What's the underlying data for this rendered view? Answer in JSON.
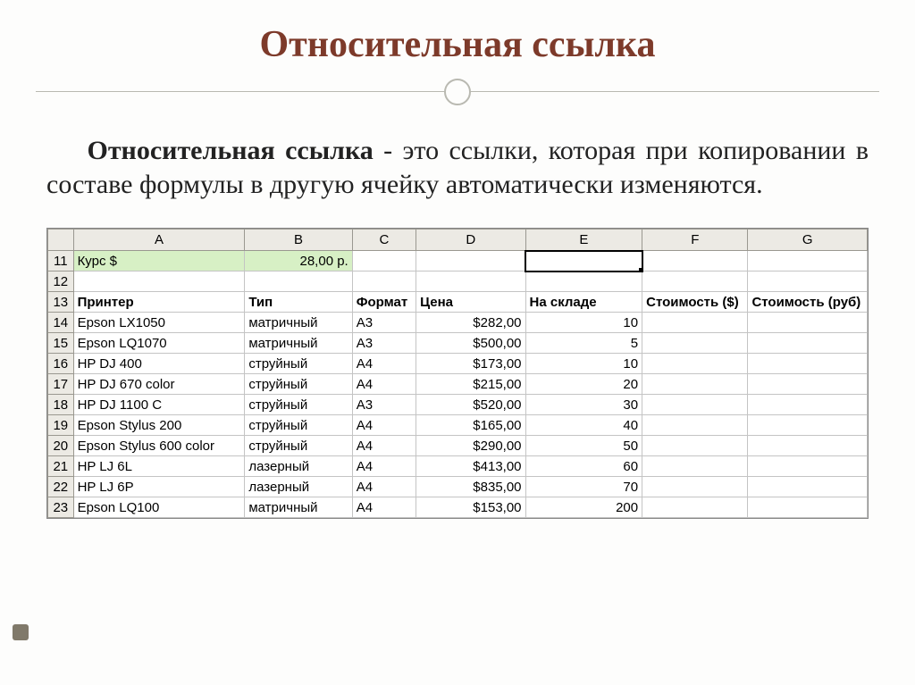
{
  "title": "Относительная ссылка",
  "term": "Относительная ссылка",
  "def_rest": " - это ссылки, которая при копировании в составе формулы в другую ячейку автоматически изменяются.",
  "columns": [
    "",
    "A",
    "B",
    "C",
    "D",
    "E",
    "F",
    "G"
  ],
  "col_widths": [
    "28px",
    "188px",
    "118px",
    "70px",
    "120px",
    "128px",
    "116px",
    "128px"
  ],
  "rows": [
    {
      "n": "11",
      "cells": [
        "Курс $",
        "28,00 р.",
        "",
        "",
        "",
        "",
        ""
      ],
      "hlA": true,
      "hlB": true,
      "rightB": true,
      "selE": true
    },
    {
      "n": "12",
      "cells": [
        "",
        "",
        "",
        "",
        "",
        "",
        ""
      ]
    },
    {
      "n": "13",
      "cells": [
        "Принтер",
        "Тип",
        "Формат",
        "Цена",
        "На складе",
        "Стоимость ($)",
        "Стоимость (руб)"
      ],
      "hdr": true
    },
    {
      "n": "14",
      "cells": [
        "Epson LX1050",
        "матричный",
        "A3",
        "$282,00",
        "10",
        "",
        ""
      ],
      "rightD": true,
      "rightE": true
    },
    {
      "n": "15",
      "cells": [
        "Epson LQ1070",
        "матричный",
        "A3",
        "$500,00",
        "5",
        "",
        ""
      ],
      "rightD": true,
      "rightE": true
    },
    {
      "n": "16",
      "cells": [
        "HP DJ 400",
        "струйный",
        "A4",
        "$173,00",
        "10",
        "",
        ""
      ],
      "rightD": true,
      "rightE": true
    },
    {
      "n": "17",
      "cells": [
        "HP DJ 670 color",
        "струйный",
        "A4",
        "$215,00",
        "20",
        "",
        ""
      ],
      "rightD": true,
      "rightE": true
    },
    {
      "n": "18",
      "cells": [
        "HP DJ 1100 C",
        "струйный",
        "A3",
        "$520,00",
        "30",
        "",
        ""
      ],
      "rightD": true,
      "rightE": true
    },
    {
      "n": "19",
      "cells": [
        "Epson Stylus 200",
        "струйный",
        "A4",
        "$165,00",
        "40",
        "",
        ""
      ],
      "rightD": true,
      "rightE": true
    },
    {
      "n": "20",
      "cells": [
        "Epson Stylus 600 color",
        "струйный",
        "A4",
        "$290,00",
        "50",
        "",
        ""
      ],
      "rightD": true,
      "rightE": true
    },
    {
      "n": "21",
      "cells": [
        "HP LJ 6L",
        "лазерный",
        "A4",
        "$413,00",
        "60",
        "",
        ""
      ],
      "rightD": true,
      "rightE": true
    },
    {
      "n": "22",
      "cells": [
        "HP LJ 6P",
        "лазерный",
        "A4",
        "$835,00",
        "70",
        "",
        ""
      ],
      "rightD": true,
      "rightE": true
    },
    {
      "n": "23",
      "cells": [
        "Epson LQ100",
        "матричный",
        "A4",
        "$153,00",
        "200",
        "",
        ""
      ],
      "rightD": true,
      "rightE": true
    }
  ]
}
